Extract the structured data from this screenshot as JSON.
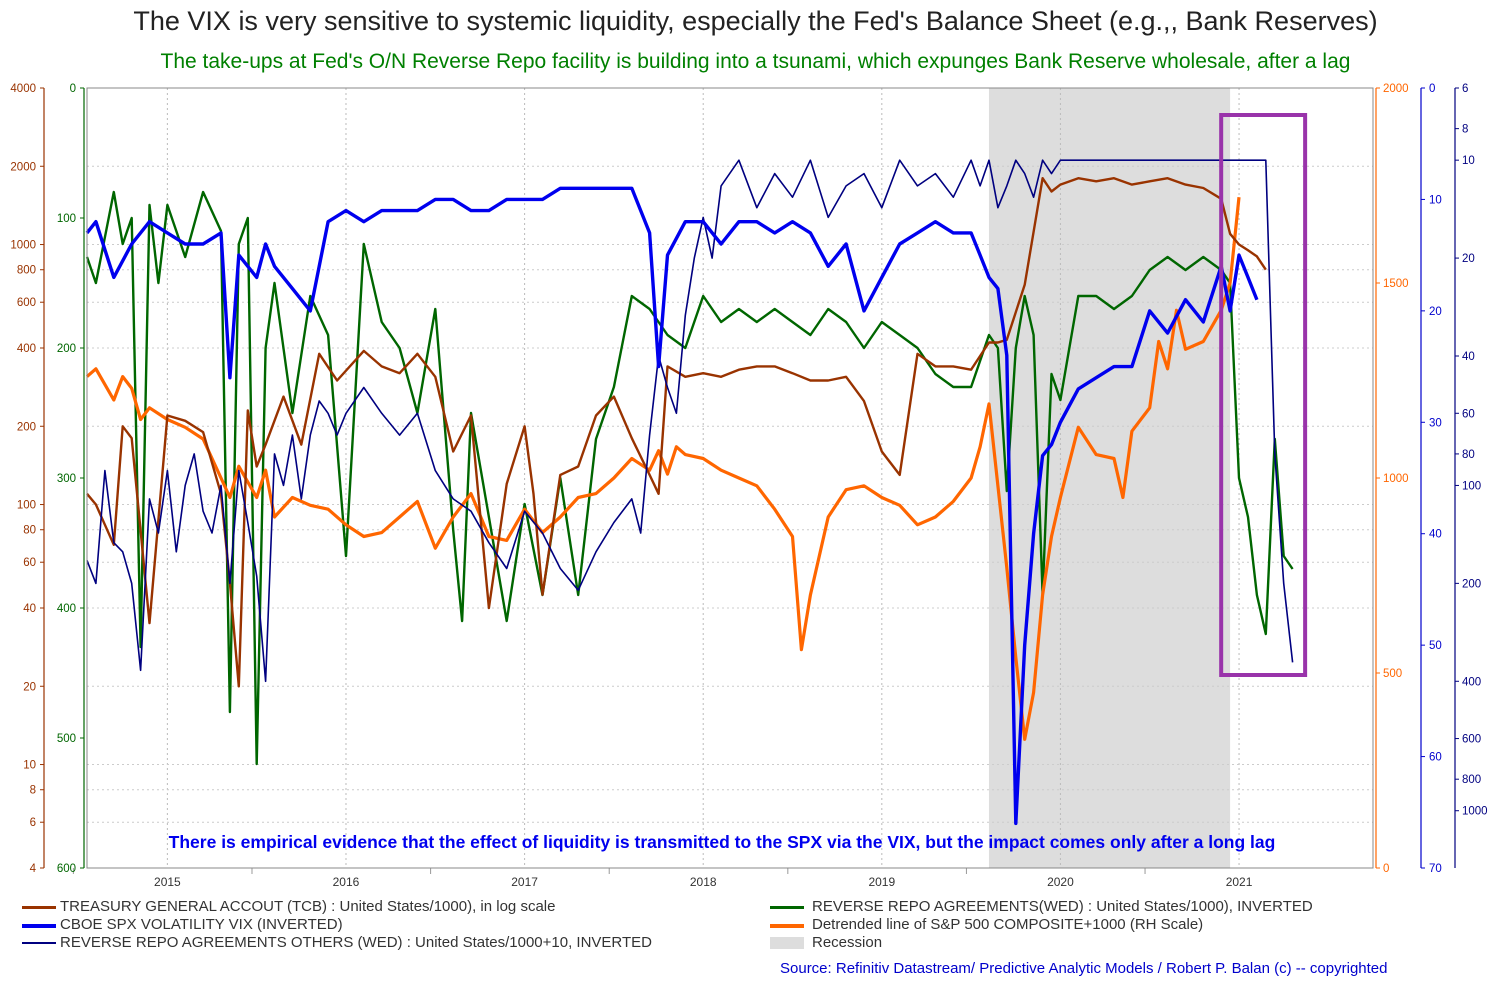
{
  "colors": {
    "tga": "#993300",
    "rrp": "#006600",
    "vix": "#0000ee",
    "rrp_others": "#000080",
    "spx": "#ff6600",
    "recession": "#dddddd",
    "highlight_box": "#9933aa",
    "left_axis1": "#993300",
    "left_axis2": "#006600",
    "right_axis1": "#ff6600",
    "right_axis2": "#0000cc",
    "right_axis3": "#000080",
    "annotation": "#0000ee"
  },
  "chart_data": {
    "type": "line",
    "title": "The VIX is very sensitive to systemic liquidity, especially the Fed's Balance Sheet (e.g.,, Bank Reserves)",
    "subtitle": "The take-ups at Fed's O/N Reverse Repo facility is building into a tsunami, which expunges Bank Reserve wholesale, after a lag",
    "annotation": "There is empirical evidence that the effect of liquidity is transmitted to the SPX via the VIX, but the impact comes only after a long lag",
    "source": "Source: Refinitiv Datastream/ Predictive Analytic Models / Robert P. Balan (c) -- copyrighted",
    "x_range": [
      2014.55,
      2021.75
    ],
    "x_ticks": [
      "2015",
      "2016",
      "2017",
      "2018",
      "2019",
      "2020",
      "2021"
    ],
    "x_tick_positions": [
      2015.0,
      2016.0,
      2017.0,
      2018.0,
      2019.0,
      2020.0,
      2021.0
    ],
    "recession": [
      2019.6,
      2020.95
    ],
    "highlight_box": [
      2020.9,
      2021.37
    ],
    "axes": {
      "left_log": {
        "ticks": [
          4000,
          2000,
          1000,
          800,
          600,
          400,
          200,
          100,
          80,
          60,
          40,
          20,
          10,
          8,
          6,
          4
        ],
        "range": [
          4,
          4000
        ],
        "scale": "log"
      },
      "left_inverted": {
        "ticks": [
          0,
          100,
          200,
          300,
          400,
          500,
          600
        ],
        "range": [
          0,
          600
        ],
        "inverted": true
      },
      "right_spx": {
        "ticks": [
          2000,
          1500,
          1000,
          500,
          0
        ],
        "range": [
          0,
          2000
        ]
      },
      "right_vix": {
        "ticks": [
          0,
          10,
          20,
          30,
          40,
          50,
          60,
          70
        ],
        "range": [
          0,
          70
        ],
        "inverted": true
      },
      "right_rrp_others": {
        "ticks": [
          6,
          8,
          10,
          20,
          40,
          60,
          80,
          100,
          200,
          400,
          600,
          800,
          1000
        ],
        "range": [
          6,
          1500
        ],
        "scale": "log",
        "inverted": true
      }
    },
    "series": [
      {
        "name": "TREASURY GENERAL ACCOUT (TCB) : United States/1000), in log scale",
        "axis": "left_log",
        "x": [
          2014.55,
          2014.6,
          2014.7,
          2014.75,
          2014.8,
          2014.9,
          2015.0,
          2015.1,
          2015.2,
          2015.3,
          2015.35,
          2015.4,
          2015.45,
          2015.5,
          2015.55,
          2015.65,
          2015.75,
          2015.85,
          2015.95,
          2016.1,
          2016.2,
          2016.3,
          2016.4,
          2016.5,
          2016.6,
          2016.7,
          2016.8,
          2016.9,
          2017.0,
          2017.05,
          2017.1,
          2017.2,
          2017.3,
          2017.4,
          2017.5,
          2017.6,
          2017.7,
          2017.75,
          2017.8,
          2017.9,
          2018.0,
          2018.1,
          2018.2,
          2018.3,
          2018.4,
          2018.5,
          2018.6,
          2018.7,
          2018.8,
          2018.9,
          2019.0,
          2019.1,
          2019.2,
          2019.3,
          2019.4,
          2019.5,
          2019.6,
          2019.65,
          2019.7,
          2019.8,
          2019.9,
          2019.95,
          2020.0,
          2020.1,
          2020.2,
          2020.3,
          2020.4,
          2020.5,
          2020.6,
          2020.7,
          2020.8,
          2020.9,
          2020.95,
          2021.0,
          2021.05,
          2021.1,
          2021.15
        ],
        "values": [
          110,
          100,
          70,
          200,
          180,
          35,
          220,
          210,
          190,
          110,
          50,
          20,
          230,
          140,
          170,
          260,
          170,
          380,
          300,
          390,
          340,
          320,
          380,
          310,
          160,
          220,
          40,
          120,
          200,
          110,
          45,
          130,
          140,
          220,
          260,
          180,
          130,
          110,
          340,
          310,
          320,
          310,
          330,
          340,
          340,
          320,
          300,
          300,
          310,
          250,
          160,
          130,
          380,
          340,
          340,
          330,
          420,
          420,
          430,
          700,
          1800,
          1600,
          1700,
          1800,
          1750,
          1800,
          1700,
          1750,
          1800,
          1700,
          1650,
          1500,
          1100,
          1000,
          950,
          900,
          800
        ]
      },
      {
        "name": "REVERSE REPO AGREEMENTS(WED) : United States/1000), INVERTED",
        "axis": "left_inverted",
        "x": [
          2014.55,
          2014.6,
          2014.7,
          2014.75,
          2014.8,
          2014.85,
          2014.9,
          2014.95,
          2015.0,
          2015.1,
          2015.2,
          2015.3,
          2015.35,
          2015.4,
          2015.45,
          2015.5,
          2015.55,
          2015.6,
          2015.7,
          2015.8,
          2015.9,
          2016.0,
          2016.1,
          2016.2,
          2016.3,
          2016.4,
          2016.5,
          2016.6,
          2016.65,
          2016.7,
          2016.8,
          2016.9,
          2017.0,
          2017.1,
          2017.2,
          2017.3,
          2017.4,
          2017.5,
          2017.6,
          2017.7,
          2017.8,
          2017.9,
          2018.0,
          2018.1,
          2018.2,
          2018.3,
          2018.4,
          2018.5,
          2018.6,
          2018.7,
          2018.8,
          2018.9,
          2019.0,
          2019.1,
          2019.2,
          2019.3,
          2019.4,
          2019.5,
          2019.6,
          2019.65,
          2019.7,
          2019.75,
          2019.8,
          2019.85,
          2019.9,
          2019.95,
          2020.0,
          2020.1,
          2020.2,
          2020.3,
          2020.4,
          2020.5,
          2020.6,
          2020.7,
          2020.8,
          2020.9,
          2020.95,
          2021.0,
          2021.05,
          2021.1,
          2021.15,
          2021.2,
          2021.25,
          2021.3
        ],
        "values": [
          130,
          150,
          80,
          120,
          100,
          430,
          90,
          150,
          90,
          130,
          80,
          110,
          480,
          120,
          100,
          520,
          200,
          150,
          250,
          160,
          190,
          360,
          120,
          180,
          200,
          250,
          170,
          340,
          410,
          250,
          330,
          410,
          320,
          390,
          300,
          390,
          270,
          230,
          160,
          170,
          190,
          200,
          160,
          180,
          170,
          180,
          170,
          180,
          190,
          170,
          180,
          200,
          180,
          190,
          200,
          220,
          230,
          230,
          190,
          200,
          310,
          200,
          160,
          190,
          390,
          220,
          240,
          160,
          160,
          170,
          160,
          140,
          130,
          140,
          130,
          140,
          150,
          300,
          330,
          390,
          420,
          270,
          360,
          370
        ]
      },
      {
        "name": "CBOE SPX VOLATILITY VIX (INVERTED)",
        "axis": "right_vix",
        "x": [
          2014.55,
          2014.6,
          2014.7,
          2014.8,
          2014.9,
          2015.0,
          2015.1,
          2015.2,
          2015.3,
          2015.35,
          2015.4,
          2015.5,
          2015.55,
          2015.6,
          2015.7,
          2015.8,
          2015.9,
          2016.0,
          2016.1,
          2016.2,
          2016.3,
          2016.4,
          2016.5,
          2016.6,
          2016.7,
          2016.8,
          2016.9,
          2017.0,
          2017.1,
          2017.2,
          2017.3,
          2017.4,
          2017.5,
          2017.6,
          2017.7,
          2017.75,
          2017.8,
          2017.9,
          2018.0,
          2018.1,
          2018.2,
          2018.3,
          2018.4,
          2018.5,
          2018.6,
          2018.7,
          2018.8,
          2018.9,
          2019.0,
          2019.1,
          2019.2,
          2019.3,
          2019.4,
          2019.5,
          2019.55,
          2019.6,
          2019.65,
          2019.7,
          2019.75,
          2019.8,
          2019.85,
          2019.9,
          2019.95,
          2020.0,
          2020.1,
          2020.2,
          2020.3,
          2020.4,
          2020.5,
          2020.6,
          2020.7,
          2020.8,
          2020.9,
          2020.95,
          2021.0,
          2021.05,
          2021.1
        ],
        "values": [
          13,
          12,
          17,
          14,
          12,
          13,
          14,
          14,
          13,
          26,
          15,
          17,
          14,
          16,
          18,
          20,
          12,
          11,
          12,
          11,
          11,
          11,
          10,
          10,
          11,
          11,
          10,
          10,
          10,
          9,
          9,
          9,
          9,
          9,
          13,
          25,
          15,
          12,
          12,
          14,
          12,
          12,
          13,
          12,
          13,
          16,
          14,
          20,
          17,
          14,
          13,
          12,
          13,
          13,
          15,
          17,
          18,
          24,
          66,
          50,
          40,
          33,
          32,
          30,
          27,
          26,
          25,
          25,
          20,
          22,
          19,
          21,
          16,
          20,
          15,
          17,
          19
        ]
      },
      {
        "name": "REVERSE REPO AGREEMENTS OTHERS (WED) : United States/1000+10, INVERTED",
        "axis": "right_rrp_others",
        "x": [
          2014.55,
          2014.6,
          2014.65,
          2014.7,
          2014.75,
          2014.8,
          2014.85,
          2014.9,
          2014.95,
          2015.0,
          2015.05,
          2015.1,
          2015.15,
          2015.2,
          2015.25,
          2015.3,
          2015.35,
          2015.4,
          2015.45,
          2015.5,
          2015.55,
          2015.6,
          2015.65,
          2015.7,
          2015.75,
          2015.8,
          2015.85,
          2015.9,
          2015.95,
          2016.0,
          2016.1,
          2016.2,
          2016.3,
          2016.4,
          2016.5,
          2016.6,
          2016.7,
          2016.8,
          2016.9,
          2017.0,
          2017.1,
          2017.2,
          2017.3,
          2017.4,
          2017.5,
          2017.6,
          2017.65,
          2017.7,
          2017.75,
          2017.8,
          2017.85,
          2017.9,
          2017.95,
          2018.0,
          2018.05,
          2018.1,
          2018.2,
          2018.3,
          2018.4,
          2018.5,
          2018.6,
          2018.7,
          2018.8,
          2018.9,
          2019.0,
          2019.1,
          2019.2,
          2019.3,
          2019.4,
          2019.5,
          2019.55,
          2019.6,
          2019.65,
          2019.7,
          2019.75,
          2019.8,
          2019.85,
          2019.9,
          2019.95,
          2020.0,
          2020.05,
          2020.1,
          2020.2,
          2020.3,
          2020.4,
          2020.5,
          2020.6,
          2020.7,
          2020.8,
          2020.9,
          2020.95,
          2021.0,
          2021.05,
          2021.1,
          2021.15,
          2021.2,
          2021.25,
          2021.3
        ],
        "values": [
          170,
          200,
          90,
          150,
          160,
          200,
          370,
          110,
          140,
          90,
          160,
          100,
          80,
          120,
          140,
          100,
          200,
          90,
          130,
          190,
          400,
          80,
          100,
          70,
          110,
          70,
          55,
          60,
          70,
          60,
          50,
          60,
          70,
          60,
          90,
          110,
          120,
          150,
          180,
          120,
          140,
          180,
          210,
          160,
          130,
          110,
          140,
          70,
          40,
          50,
          60,
          30,
          20,
          15,
          20,
          12,
          10,
          14,
          11,
          13,
          10,
          15,
          12,
          11,
          14,
          10,
          12,
          11,
          13,
          10,
          12,
          10,
          14,
          12,
          10,
          11,
          13,
          10,
          11,
          10,
          10,
          10,
          10,
          10,
          10,
          10,
          10,
          10,
          10,
          10,
          10,
          10,
          10,
          10,
          10,
          80,
          200,
          350
        ]
      },
      {
        "name": "Detrended line of S&P 500 COMPOSITE+1000 (RH Scale)",
        "axis": "right_spx",
        "x": [
          2014.55,
          2014.6,
          2014.7,
          2014.75,
          2014.8,
          2014.85,
          2014.9,
          2015.0,
          2015.1,
          2015.2,
          2015.3,
          2015.35,
          2015.4,
          2015.5,
          2015.55,
          2015.6,
          2015.7,
          2015.8,
          2015.9,
          2016.0,
          2016.1,
          2016.2,
          2016.3,
          2016.4,
          2016.5,
          2016.6,
          2016.7,
          2016.8,
          2016.9,
          2017.0,
          2017.1,
          2017.2,
          2017.3,
          2017.4,
          2017.5,
          2017.6,
          2017.7,
          2017.75,
          2017.8,
          2017.85,
          2017.9,
          2018.0,
          2018.1,
          2018.2,
          2018.3,
          2018.4,
          2018.5,
          2018.55,
          2018.6,
          2018.65,
          2018.7,
          2018.8,
          2018.9,
          2019.0,
          2019.1,
          2019.2,
          2019.3,
          2019.4,
          2019.5,
          2019.55,
          2019.6,
          2019.65,
          2019.7,
          2019.75,
          2019.8,
          2019.85,
          2019.9,
          2019.95,
          2020.0,
          2020.1,
          2020.2,
          2020.3,
          2020.35,
          2020.4,
          2020.5,
          2020.55,
          2020.6,
          2020.65,
          2020.7,
          2020.8,
          2020.9,
          2020.95,
          2021.0
        ],
        "values": [
          1260,
          1280,
          1200,
          1260,
          1230,
          1150,
          1180,
          1150,
          1130,
          1100,
          1000,
          950,
          1030,
          950,
          1020,
          900,
          950,
          930,
          920,
          880,
          850,
          860,
          900,
          940,
          820,
          900,
          960,
          850,
          840,
          920,
          860,
          900,
          950,
          960,
          1000,
          1050,
          1020,
          1070,
          1010,
          1080,
          1060,
          1050,
          1020,
          1000,
          980,
          920,
          850,
          560,
          700,
          800,
          900,
          970,
          980,
          950,
          930,
          880,
          900,
          940,
          1000,
          1080,
          1190,
          980,
          770,
          540,
          330,
          450,
          700,
          850,
          950,
          1130,
          1060,
          1050,
          950,
          1120,
          1180,
          1350,
          1280,
          1430,
          1330,
          1350,
          1430,
          1500,
          1720
        ]
      }
    ]
  },
  "legend": {
    "tga": "TREASURY GENERAL ACCOUT (TCB) : United States/1000), in log scale",
    "vix": "CBOE SPX VOLATILITY VIX (INVERTED)",
    "rrp_others": "REVERSE REPO AGREEMENTS OTHERS (WED) : United States/1000+10, INVERTED",
    "rrp": "REVERSE REPO AGREEMENTS(WED) : United States/1000), INVERTED",
    "spx": "Detrended line of S&P 500 COMPOSITE+1000 (RH Scale)",
    "recession": "Recession"
  }
}
